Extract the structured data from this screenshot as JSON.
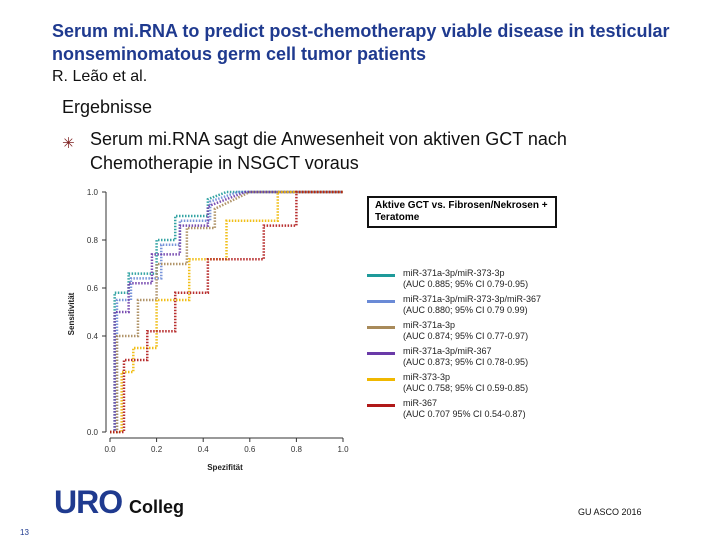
{
  "slide": {
    "title": "Serum mi.RNA to predict post-chemotherapy viable disease in testicular nonseminomatous germ cell tumor patients",
    "authors": "R. Leão et al.",
    "section": "Ergebnisse",
    "bullet": "Serum mi.RNA sagt die Anwesenheit von aktiven GCT nach Chemotherapie in NSGCT voraus",
    "footer_page": "13",
    "footer_source": "GU ASCO 2016",
    "logo_uro": "URO",
    "logo_colleg": "Colleg"
  },
  "chart_data": {
    "type": "line",
    "title": "",
    "xlabel": "Spezifität",
    "ylabel": "Sensitivität",
    "xlim": [
      0.0,
      1.0
    ],
    "ylim": [
      0.0,
      1.0
    ],
    "x_ticks": [
      "0.0",
      "0.2",
      "0.4",
      "0.6",
      "0.8",
      "1.0"
    ],
    "y_ticks": [
      "0.0",
      "0.4",
      "0.6",
      "0.8",
      "1.0"
    ],
    "box_label": "Aktive GCT vs. Fibrosen/Nekrosen + Teratome",
    "series": [
      {
        "name": "miR-371a-3p/miR-373-3p",
        "auc": "(AUC 0.885; 95% CI 0.79-0.95)",
        "color": "#1e9a9a",
        "x": [
          0.0,
          0.02,
          0.02,
          0.08,
          0.08,
          0.2,
          0.2,
          0.28,
          0.28,
          0.42,
          0.42,
          0.5,
          1.0
        ],
        "y": [
          0.0,
          0.0,
          0.58,
          0.58,
          0.66,
          0.66,
          0.8,
          0.8,
          0.9,
          0.9,
          0.97,
          1.0,
          1.0
        ]
      },
      {
        "name": "miR-371a-3p/miR-373-3p/miR-367",
        "auc": "(AUC 0.880; 95% CI 0.79 0.99)",
        "color": "#6a8ad6",
        "x": [
          0.0,
          0.03,
          0.03,
          0.09,
          0.09,
          0.22,
          0.22,
          0.3,
          0.3,
          0.43,
          0.43,
          0.55,
          1.0
        ],
        "y": [
          0.0,
          0.0,
          0.55,
          0.55,
          0.64,
          0.64,
          0.78,
          0.78,
          0.88,
          0.88,
          0.96,
          1.0,
          1.0
        ]
      },
      {
        "name": "miR-371a-3p",
        "auc": "(AUC 0.874; 95% CI 0.77-0.97)",
        "color": "#a88a5a",
        "x": [
          0.0,
          0.03,
          0.03,
          0.12,
          0.12,
          0.2,
          0.2,
          0.33,
          0.33,
          0.45,
          0.45,
          0.6,
          1.0
        ],
        "y": [
          0.0,
          0.0,
          0.4,
          0.4,
          0.55,
          0.55,
          0.7,
          0.7,
          0.85,
          0.85,
          0.93,
          1.0,
          1.0
        ]
      },
      {
        "name": "miR-371a-3p/miR-367",
        "auc": "(AUC 0.873; 95% CI 0.78-0.95)",
        "color": "#6a3aa8",
        "x": [
          0.0,
          0.02,
          0.02,
          0.08,
          0.08,
          0.18,
          0.18,
          0.3,
          0.3,
          0.42,
          0.42,
          0.58,
          1.0
        ],
        "y": [
          0.0,
          0.0,
          0.5,
          0.5,
          0.62,
          0.62,
          0.74,
          0.74,
          0.86,
          0.86,
          0.94,
          1.0,
          1.0
        ]
      },
      {
        "name": "miR-373-3p",
        "auc": "(AUC 0.758; 95% CI 0.59-0.85)",
        "color": "#f0b800",
        "x": [
          0.0,
          0.05,
          0.05,
          0.1,
          0.1,
          0.2,
          0.2,
          0.34,
          0.34,
          0.5,
          0.5,
          0.72,
          0.72,
          1.0
        ],
        "y": [
          0.0,
          0.0,
          0.25,
          0.25,
          0.35,
          0.35,
          0.55,
          0.55,
          0.72,
          0.72,
          0.88,
          0.88,
          1.0,
          1.0
        ]
      },
      {
        "name": "miR-367",
        "auc": "(AUC 0.707 95% CI 0.54-0.87)",
        "color": "#b01818",
        "x": [
          0.0,
          0.06,
          0.06,
          0.16,
          0.16,
          0.28,
          0.28,
          0.42,
          0.42,
          0.66,
          0.66,
          0.8,
          0.8,
          1.0
        ],
        "y": [
          0.0,
          0.0,
          0.3,
          0.3,
          0.42,
          0.42,
          0.58,
          0.58,
          0.72,
          0.72,
          0.86,
          0.86,
          1.0,
          1.0
        ]
      }
    ]
  }
}
